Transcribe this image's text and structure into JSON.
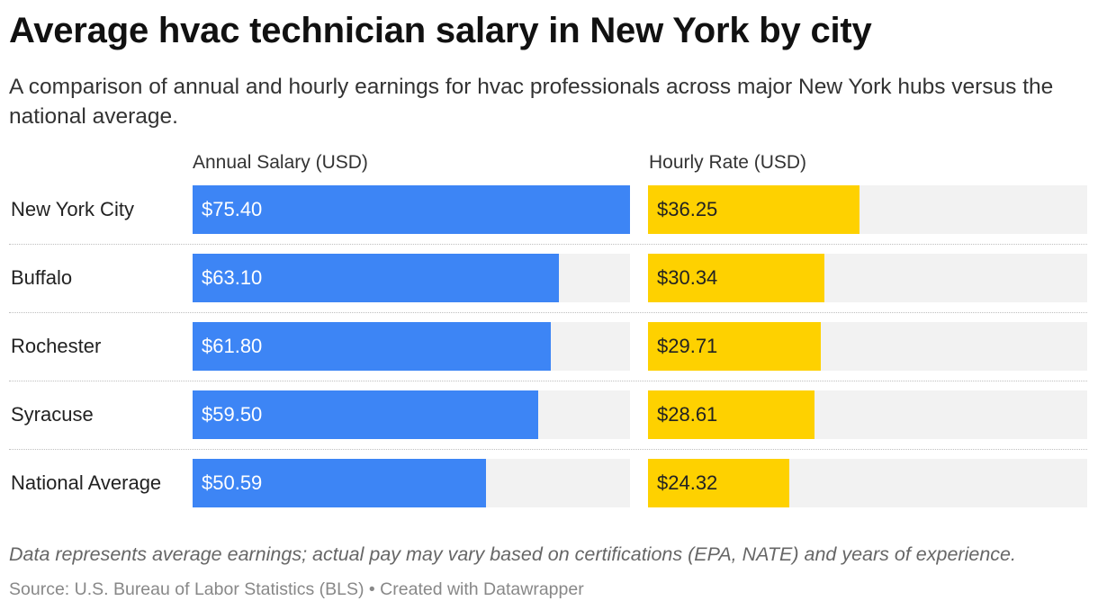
{
  "title": "Average hvac technician salary in New York by city",
  "subtitle": "A comparison of annual and hourly earnings for hvac professionals across major New York hubs versus the national average.",
  "note": "Data represents average earnings; actual pay may vary based on certifications (EPA, NATE) and years of experience.",
  "source": "Source: U.S. Bureau of Labor Statistics (BLS) • Created with Datawrapper",
  "colors": {
    "annual": "#3d85f5",
    "hourly": "#fed100",
    "track": "#f2f2f2"
  },
  "chart_data": {
    "type": "bar",
    "orientation": "horizontal",
    "categories": [
      "New York City",
      "Buffalo",
      "Rochester",
      "Syracuse",
      "National Average"
    ],
    "series": [
      {
        "name": "Annual Salary (USD)",
        "values": [
          75.4,
          63.1,
          61.8,
          59.5,
          50.59
        ],
        "labels": [
          "$75.40",
          "$63.10",
          "$61.80",
          "$59.50",
          "$50.59"
        ],
        "xlim": [
          0,
          75.4
        ]
      },
      {
        "name": "Hourly Rate (USD)",
        "values": [
          36.25,
          30.34,
          29.71,
          28.61,
          24.32
        ],
        "labels": [
          "$36.25",
          "$30.34",
          "$29.71",
          "$28.61",
          "$24.32"
        ],
        "xlim": [
          0,
          75.4
        ]
      }
    ]
  }
}
